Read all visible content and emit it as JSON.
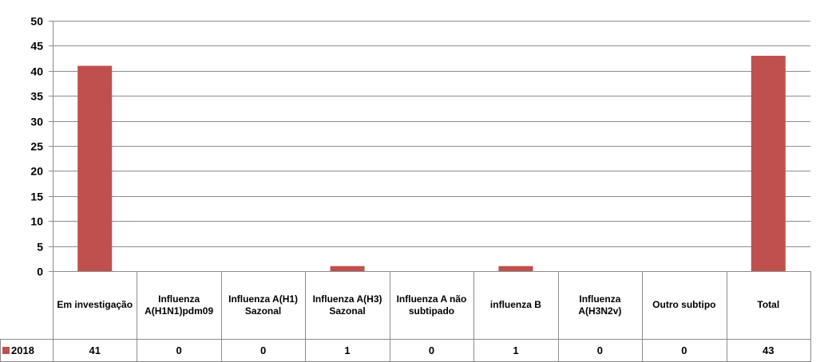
{
  "chart_data": {
    "type": "bar",
    "categories": [
      "Em investigação",
      "Influenza A(H1N1)pdm09",
      "Influenza A(H1) Sazonal",
      "Influenza A(H3) Sazonal",
      "Influenza A não subtipado",
      "influenza B",
      "Influenza A(H3N2v)",
      "Outro subtipo",
      "Total"
    ],
    "series": [
      {
        "name": "2018",
        "values": [
          41,
          0,
          0,
          1,
          0,
          1,
          0,
          0,
          43
        ],
        "color": "#c0504d"
      }
    ],
    "ylim": [
      0,
      50
    ],
    "yticks": [
      0,
      5,
      10,
      15,
      20,
      25,
      30,
      35,
      40,
      45,
      50
    ],
    "grid": true,
    "legend": "data-table-left",
    "data_table": true
  }
}
